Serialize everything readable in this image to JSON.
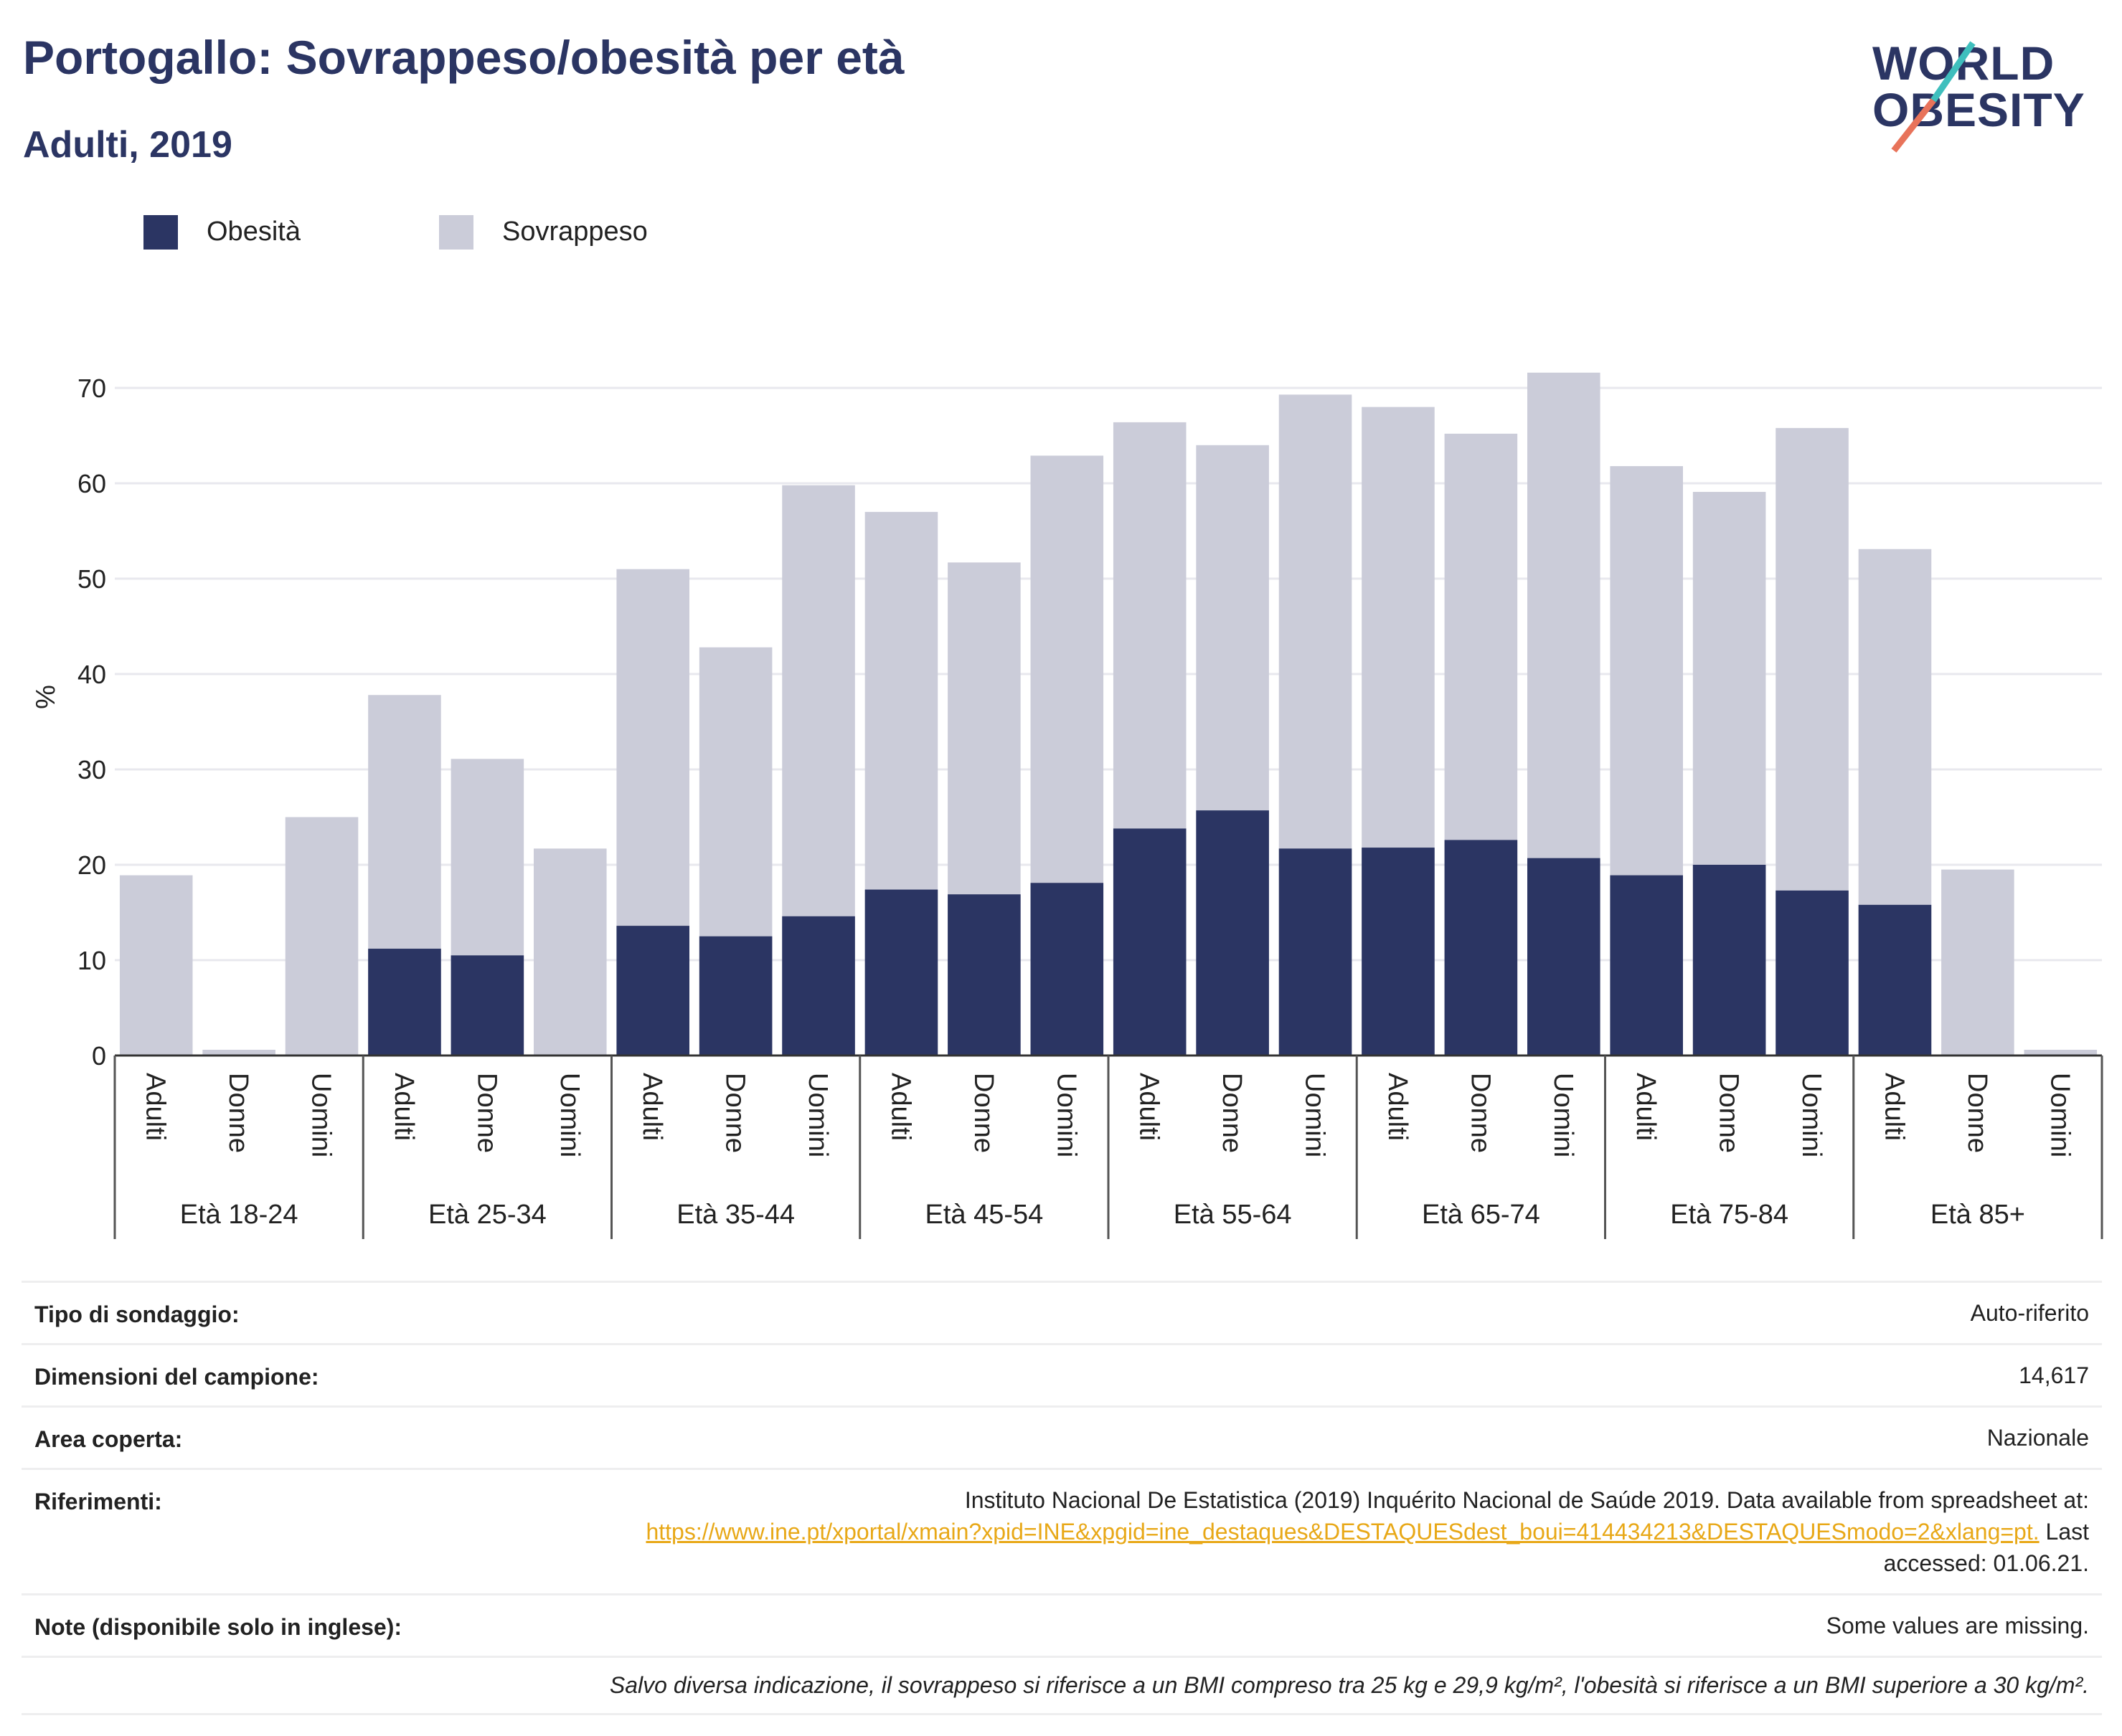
{
  "header": {
    "title": "Portogallo: Sovrappeso/obesità per età",
    "subtitle": "Adulti, 2019",
    "logo_line1": "WORLD",
    "logo_line2": "OBESITY"
  },
  "legend": [
    {
      "label": "Obesità",
      "color": "#2b3563"
    },
    {
      "label": "Sovrappeso",
      "color": "#cbccd9"
    }
  ],
  "chart_data": {
    "type": "bar",
    "stacked": false,
    "ylabel": "%",
    "ylim": [
      0,
      72
    ],
    "yticks": [
      0,
      10,
      20,
      30,
      40,
      50,
      60,
      70
    ],
    "grid": true,
    "legend_position": "top-left",
    "groups": [
      "Età 18-24",
      "Età 25-34",
      "Età 35-44",
      "Età 45-54",
      "Età 55-64",
      "Età 65-74",
      "Età 75-84",
      "Età 85+"
    ],
    "subcategories": [
      "Adulti",
      "Donne",
      "Uomini"
    ],
    "series": [
      {
        "name": "Sovrappeso",
        "color": "#cbccd9",
        "values": [
          18.9,
          0.6,
          25.0,
          37.8,
          31.1,
          21.7,
          51.0,
          42.8,
          59.8,
          57.0,
          51.7,
          62.9,
          66.4,
          64.0,
          69.3,
          68.0,
          65.2,
          71.6,
          61.8,
          59.1,
          65.8,
          53.1,
          19.5,
          0.6
        ]
      },
      {
        "name": "Obesità",
        "color": "#2b3563",
        "values": [
          null,
          null,
          null,
          11.2,
          10.5,
          null,
          13.6,
          12.5,
          14.6,
          17.4,
          16.9,
          18.1,
          23.8,
          25.7,
          21.7,
          21.8,
          22.6,
          20.7,
          18.9,
          20.0,
          17.3,
          15.8,
          null,
          null
        ]
      }
    ]
  },
  "info": {
    "survey_type": {
      "label": "Tipo di sondaggio:",
      "value": "Auto-riferito"
    },
    "sample_size": {
      "label": "Dimensioni del campione:",
      "value": "14,617"
    },
    "area": {
      "label": "Area coperta:",
      "value": "Nazionale"
    },
    "references": {
      "label": "Riferimenti:",
      "text": "Instituto Nacional De Estatistica (2019) Inquérito Nacional de Saúde 2019. Data available from spreadsheet at:",
      "link": "https://www.ine.pt/xportal/xmain?xpid=INE&xpgid=ine_destaques&DESTAQUESdest_boui=414434213&DESTAQUESmodo=2&xlang=pt.",
      "accessed": " Last accessed: 01.06.21."
    },
    "notes": {
      "label": "Note (disponibile solo in inglese):",
      "value": "Some values are missing."
    },
    "footnote": "Salvo diversa indicazione, il sovrappeso si riferisce a un BMI compreso tra 25 kg e 29,9 kg/m², l'obesità si riferisce a un BMI superiore a 30 kg/m²."
  }
}
